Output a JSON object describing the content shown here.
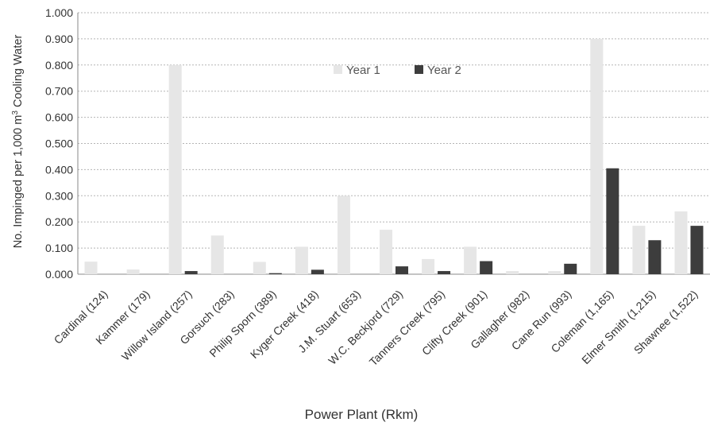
{
  "chart_data": {
    "type": "bar",
    "title": "",
    "xlabel": "Power Plant (Rkm)",
    "ylabel": "No. Impinged per 1,000 m³ Cooling Water",
    "ylim": [
      0,
      1.0
    ],
    "yticks": [
      "0.000",
      "0.100",
      "0.200",
      "0.300",
      "0.400",
      "0.500",
      "0.600",
      "0.700",
      "0.800",
      "0.900",
      "1.000"
    ],
    "grid": true,
    "legend_position": "top-center",
    "categories": [
      "Cardinal (124)",
      "Kammer (179)",
      "Willow Island (257)",
      "Gorsuch (283)",
      "Philip Sporn (389)",
      "Kyger Creek (418)",
      "J.M. Stuart (653)",
      "W.C. Beckjord (729)",
      "Tanners Creek (795)",
      "Clifty Creek (901)",
      "Gallagher (982)",
      "Cane Run (993)",
      "Coleman (1,165)",
      "Elmer Smith (1,215)",
      "Shawnee (1,522)"
    ],
    "series": [
      {
        "name": "Year 1",
        "color": "#e6e6e6",
        "values": [
          0.048,
          0.018,
          0.8,
          0.148,
          0.047,
          0.105,
          0.3,
          0.17,
          0.058,
          0.105,
          0.012,
          0.012,
          0.9,
          0.185,
          0.24
        ]
      },
      {
        "name": "Year 2",
        "color": "#3d3d3d",
        "values": [
          0.0,
          0.0,
          0.012,
          0.0,
          0.004,
          0.017,
          0.0,
          0.03,
          0.012,
          0.05,
          0.0,
          0.04,
          0.405,
          0.13,
          0.185
        ]
      }
    ]
  }
}
